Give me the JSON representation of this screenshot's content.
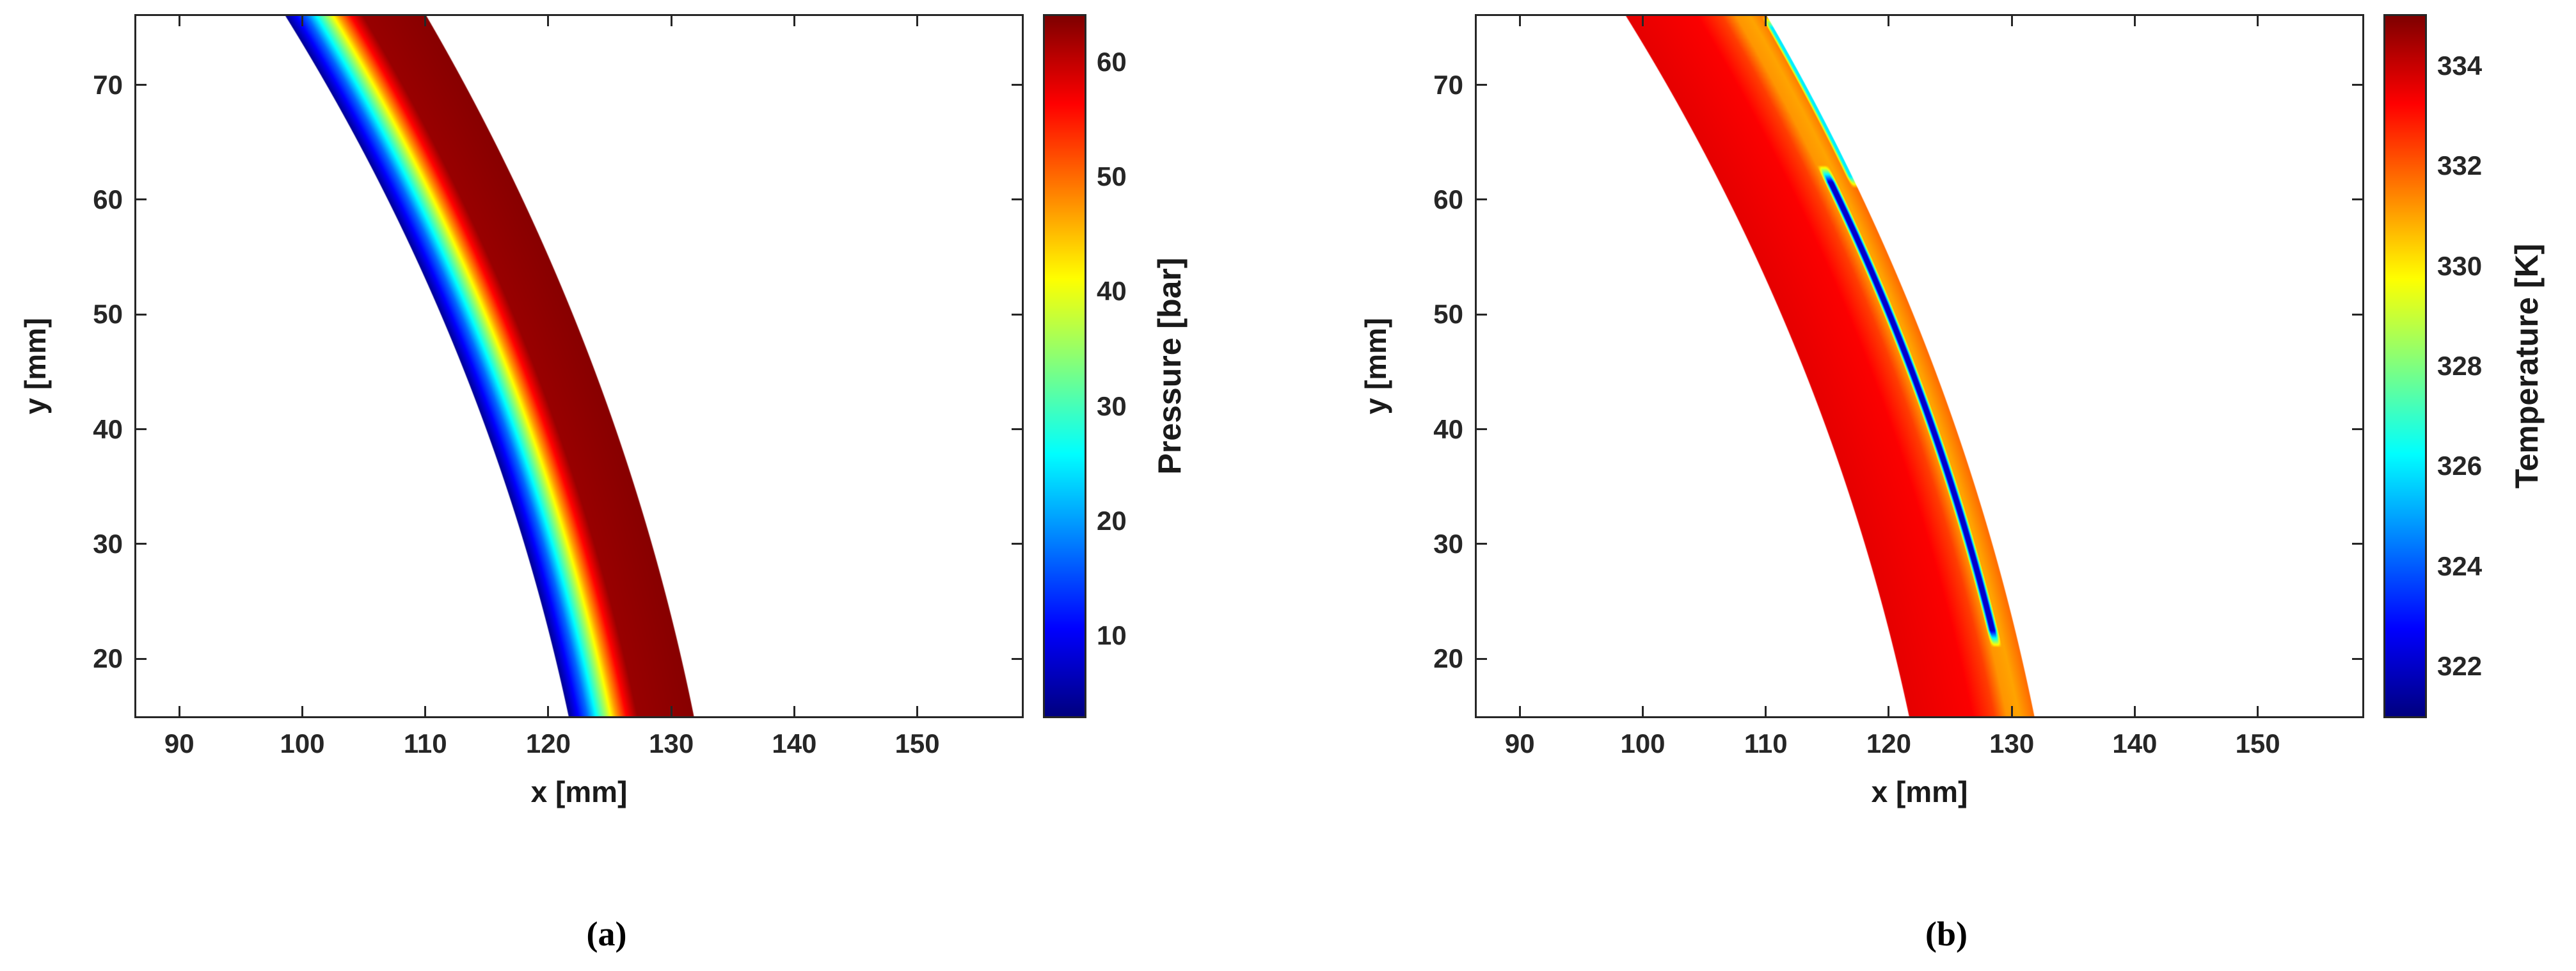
{
  "figure": {
    "captions": {
      "a": "(a)",
      "b": "(b)"
    }
  },
  "chart_data": [
    {
      "type": "heatmap",
      "panel": "a",
      "xlabel": "x [mm]",
      "ylabel": "y [mm]",
      "xlim": [
        86.5,
        158.5
      ],
      "ylim": [
        15,
        76
      ],
      "xticks": [
        90,
        100,
        110,
        120,
        130,
        140,
        150
      ],
      "yticks": [
        20,
        30,
        40,
        50,
        60,
        70
      ],
      "grid": false,
      "colormap": "jet",
      "colorbar": {
        "label": "Pressure [bar]",
        "ticks": [
          10,
          20,
          30,
          40,
          50,
          60
        ],
        "range": [
          3,
          64
        ]
      },
      "band": {
        "center_x": -74,
        "center_y": -24,
        "r_inner": 199.5,
        "r_outer": 209.5
      },
      "field": "pressure",
      "profile": {
        "t": [
          0,
          0.07,
          0.15,
          0.22,
          0.3,
          0.38,
          0.46,
          0.55,
          1.0
        ],
        "value": [
          4,
          10,
          17,
          26,
          36,
          47,
          56,
          62.5,
          63.5
        ]
      }
    },
    {
      "type": "heatmap",
      "panel": "b",
      "xlabel": "x [mm]",
      "ylabel": "y [mm]",
      "xlim": [
        86.5,
        158.5
      ],
      "ylim": [
        15,
        76
      ],
      "xticks": [
        90,
        100,
        110,
        120,
        130,
        140,
        150
      ],
      "yticks": [
        20,
        30,
        40,
        50,
        60,
        70
      ],
      "grid": false,
      "colormap": "jet",
      "colorbar": {
        "label": "Temperature [K]",
        "ticks": [
          322,
          324,
          326,
          328,
          330,
          332,
          334
        ],
        "range": [
          321,
          335
        ]
      },
      "band": {
        "center_x": -74,
        "center_y": -24,
        "r_inner": 199.5,
        "r_outer": 209.5
      },
      "field": "temperature",
      "profile": {
        "t": [
          0,
          0.5,
          0.68,
          0.78,
          0.88,
          1.0
        ],
        "value": [
          333.6,
          333.3,
          332.4,
          331.2,
          331.0,
          331.8
        ]
      },
      "stripe": {
        "t_center": 0.82,
        "t_width": 0.09,
        "value": 322,
        "y_start": 21,
        "y_end": 63
      },
      "edge_line": {
        "t_start": 0.955,
        "value": 326,
        "y_start": 61,
        "y_end": 76
      }
    }
  ]
}
